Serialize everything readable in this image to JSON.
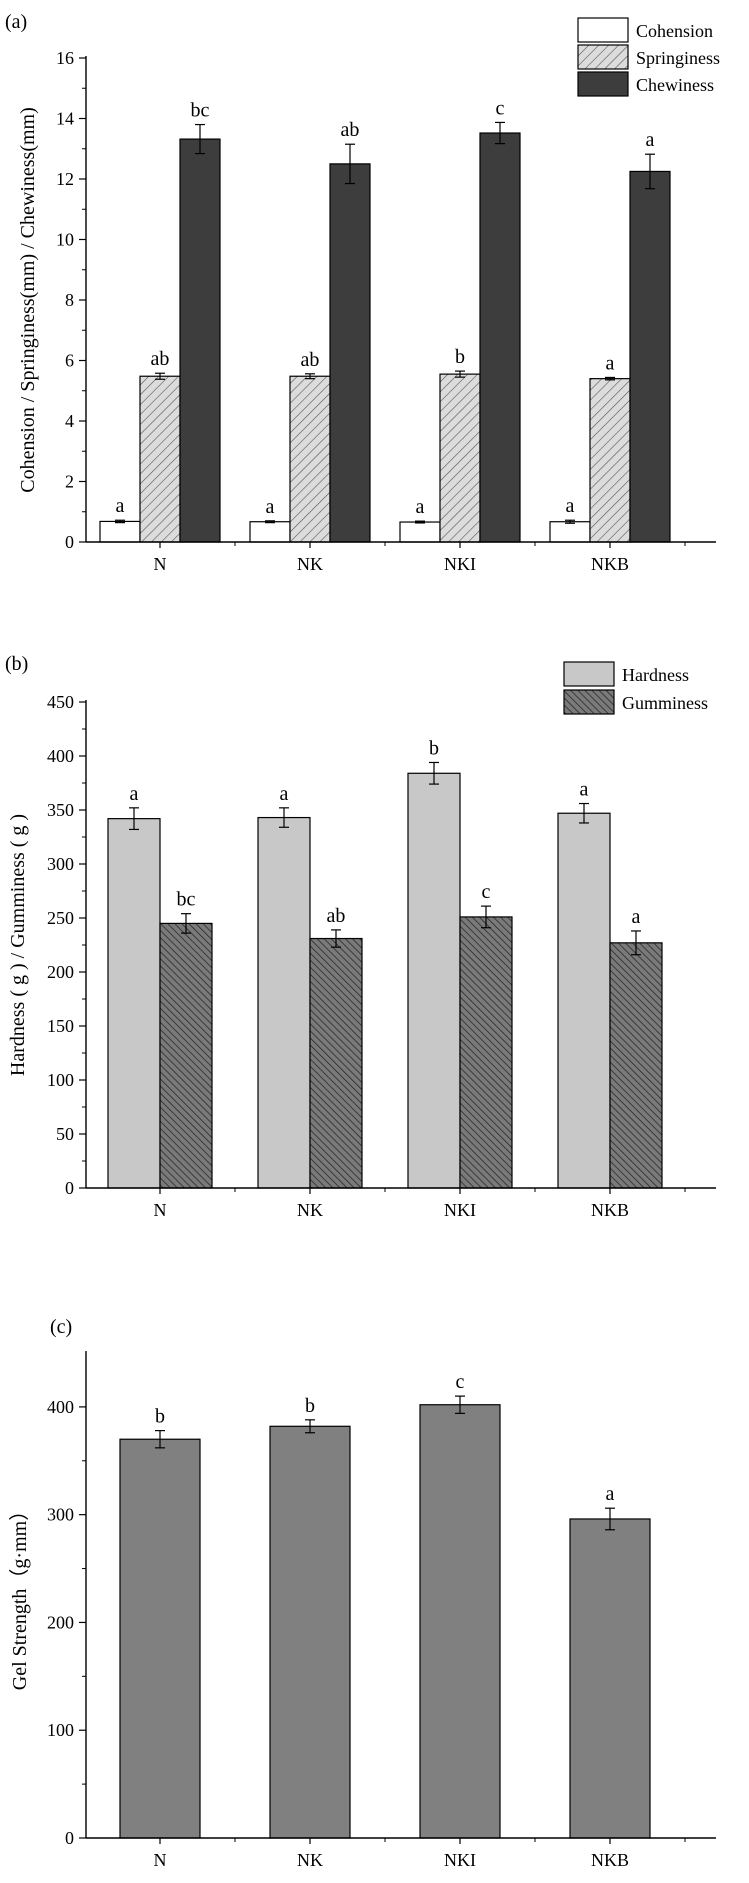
{
  "chart_data": [
    {
      "type": "bar",
      "panel_label": "(a)",
      "title": "",
      "xlabel": "",
      "ylabel": "Cohension / Springiness(mm) / Chewiness(mm)",
      "ylim": [
        0,
        16
      ],
      "yticks": [
        0,
        2,
        4,
        6,
        8,
        10,
        12,
        14,
        16
      ],
      "grid": false,
      "legend_position": "top-right",
      "categories": [
        "N",
        "NK",
        "NKI",
        "NKB"
      ],
      "series": [
        {
          "name": "Cohension",
          "style": "open",
          "color": "#ffffff",
          "values": [
            0.68,
            0.67,
            0.66,
            0.67
          ],
          "errors": [
            0.04,
            0.03,
            0.03,
            0.05
          ],
          "letters": [
            "a",
            "a",
            "a",
            "a"
          ]
        },
        {
          "name": "Springiness",
          "style": "hatch",
          "color": "#cccccc",
          "values": [
            5.48,
            5.48,
            5.55,
            5.4
          ],
          "errors": [
            0.1,
            0.08,
            0.1,
            0.04
          ],
          "letters": [
            "ab",
            "ab",
            "b",
            "a"
          ]
        },
        {
          "name": "Chewiness",
          "style": "solid",
          "color": "#3d3d3d",
          "values": [
            13.32,
            12.5,
            13.52,
            12.25
          ],
          "errors": [
            0.48,
            0.65,
            0.35,
            0.57
          ],
          "letters": [
            "bc",
            "ab",
            "c",
            "a"
          ]
        }
      ]
    },
    {
      "type": "bar",
      "panel_label": "(b)",
      "title": "",
      "xlabel": "",
      "ylabel": "Hardness ( g ) / Gumminess ( g )",
      "ylim": [
        0,
        450
      ],
      "yticks": [
        0,
        50,
        100,
        150,
        200,
        250,
        300,
        350,
        400,
        450
      ],
      "grid": false,
      "legend_position": "top-right",
      "categories": [
        "N",
        "NK",
        "NKI",
        "NKB"
      ],
      "series": [
        {
          "name": "Hardness",
          "style": "solid",
          "color": "#c8c8c8",
          "values": [
            342,
            343,
            384,
            347
          ],
          "errors": [
            10,
            9,
            10,
            9
          ],
          "letters": [
            "a",
            "a",
            "b",
            "a"
          ]
        },
        {
          "name": "Gumminess",
          "style": "hatch-dark",
          "color": "#5a5a5a",
          "values": [
            245,
            231,
            251,
            227
          ],
          "errors": [
            9,
            8,
            10,
            11
          ],
          "letters": [
            "bc",
            "ab",
            "c",
            "a"
          ]
        }
      ]
    },
    {
      "type": "bar",
      "panel_label": "(c)",
      "title": "",
      "xlabel": "",
      "ylabel": "Gel Strength（g·mm）",
      "ylim": [
        0,
        450
      ],
      "yticks": [
        0,
        100,
        200,
        300,
        400
      ],
      "grid": false,
      "legend_position": "none",
      "categories": [
        "N",
        "NK",
        "NKI",
        "NKB"
      ],
      "series": [
        {
          "name": "Gel Strength",
          "style": "solid",
          "color": "#808080",
          "values": [
            370,
            382,
            402,
            296
          ],
          "errors": [
            8,
            6,
            8,
            10
          ],
          "letters": [
            "b",
            "b",
            "c",
            "a"
          ]
        }
      ]
    }
  ]
}
